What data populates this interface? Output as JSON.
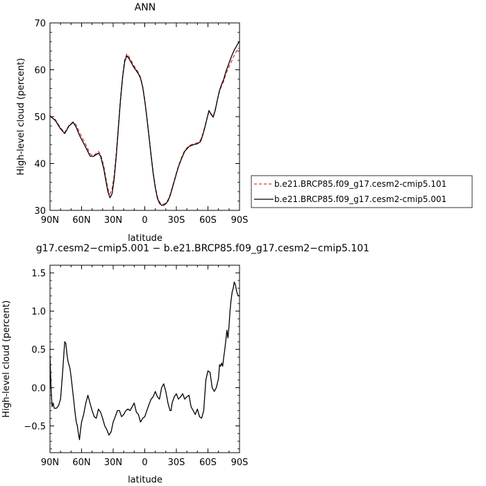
{
  "chart_data": [
    {
      "type": "line",
      "title": "ANN",
      "xlabel": "latitude",
      "ylabel": "High-level cloud (percent)",
      "xlim": [
        90,
        -90
      ],
      "ylim": [
        30,
        70
      ],
      "x_ticks": [
        90,
        60,
        30,
        0,
        -30,
        -60,
        -90
      ],
      "x_tick_labels": [
        "90N",
        "60N",
        "30N",
        "0",
        "30S",
        "60S",
        "90S"
      ],
      "y_ticks": [
        30,
        40,
        50,
        60,
        70
      ],
      "y_tick_labels": [
        "30",
        "40",
        "50",
        "60",
        "70"
      ],
      "legend_position": "right",
      "series": [
        {
          "name": "b.e21.BRCP85.f09_g17.cesm2-cmip5.101",
          "color": "#e03030",
          "dash": "dashed",
          "x": [
            90,
            85,
            80,
            76,
            72,
            68,
            65,
            62,
            58,
            55,
            52,
            49,
            46,
            44,
            42,
            39,
            37,
            35,
            33,
            31,
            29,
            27,
            25,
            23,
            21,
            19,
            17,
            15,
            12,
            10,
            8,
            6,
            4,
            2,
            0,
            -2,
            -4,
            -6,
            -8,
            -10,
            -12,
            -14,
            -16,
            -18,
            -20,
            -22,
            -24,
            -26,
            -28,
            -30,
            -32,
            -35,
            -38,
            -42,
            -46,
            -50,
            -53,
            -55,
            -57,
            -59,
            -61,
            -63,
            -65,
            -67,
            -69,
            -71,
            -73,
            -75,
            -77,
            -79,
            -81,
            -83,
            -85,
            -87,
            -89,
            -90
          ],
          "values": [
            50.2,
            49.4,
            47.6,
            46.6,
            48.1,
            48.9,
            48.2,
            46.6,
            44.9,
            43.6,
            42.1,
            41.6,
            42.2,
            42.6,
            42.0,
            39.6,
            37.0,
            34.6,
            33.5,
            34.6,
            37.6,
            42.5,
            48.3,
            54.0,
            58.9,
            62.3,
            63.4,
            62.8,
            61.6,
            60.8,
            60.1,
            59.4,
            58.4,
            56.5,
            53.6,
            50.0,
            46.0,
            42.0,
            38.2,
            35.1,
            32.9,
            31.8,
            31.3,
            31.3,
            31.6,
            32.2,
            33.3,
            34.8,
            36.4,
            38.0,
            39.5,
            41.3,
            42.8,
            43.8,
            44.2,
            44.4,
            45.0,
            46.2,
            47.8,
            49.6,
            51.1,
            50.6,
            50.0,
            51.6,
            53.6,
            55.4,
            56.6,
            57.6,
            59.1,
            60.1,
            61.1,
            62.1,
            63.1,
            63.9,
            64.6,
            64.6
          ]
        },
        {
          "name": "b.e21.BRCP85.f09_g17.cesm2-cmip5.001",
          "color": "#000000",
          "dash": "solid",
          "x": [
            90,
            85,
            80,
            76,
            72,
            68,
            65,
            62,
            58,
            55,
            52,
            49,
            46,
            44,
            42,
            39,
            37,
            35,
            33,
            31,
            29,
            27,
            25,
            23,
            21,
            19,
            17,
            15,
            12,
            10,
            8,
            6,
            4,
            2,
            0,
            -2,
            -4,
            -6,
            -8,
            -10,
            -12,
            -14,
            -16,
            -18,
            -20,
            -22,
            -24,
            -26,
            -28,
            -30,
            -32,
            -35,
            -38,
            -42,
            -46,
            -50,
            -53,
            -55,
            -57,
            -59,
            -61,
            -63,
            -65,
            -67,
            -69,
            -71,
            -73,
            -75,
            -77,
            -79,
            -81,
            -83,
            -85,
            -87,
            -89,
            -90
          ],
          "values": [
            50.1,
            49.2,
            47.4,
            46.4,
            48.0,
            48.8,
            47.7,
            46.0,
            44.3,
            43.0,
            41.6,
            41.5,
            41.9,
            42.2,
            41.6,
            39.0,
            36.4,
            34.0,
            32.7,
            33.6,
            36.8,
            41.8,
            47.8,
            53.6,
            58.5,
            61.8,
            63.0,
            62.4,
            61.2,
            60.4,
            59.8,
            59.1,
            58.2,
            56.3,
            53.4,
            49.8,
            45.7,
            41.7,
            37.9,
            34.8,
            32.6,
            31.5,
            31.1,
            31.1,
            31.4,
            32.0,
            33.1,
            34.6,
            36.2,
            37.8,
            39.3,
            41.1,
            42.6,
            43.6,
            44.0,
            44.2,
            44.7,
            46.0,
            47.6,
            49.5,
            51.3,
            50.5,
            49.9,
            51.4,
            53.6,
            55.6,
            56.9,
            58.0,
            59.6,
            60.8,
            62.0,
            63.2,
            64.2,
            65.0,
            65.8,
            66.0
          ]
        }
      ]
    },
    {
      "type": "line",
      "title": "g17.cesm2−cmip5.001 − b.e21.BRCP85.f09_g17.cesm2−cmip5.101",
      "xlabel": "latitude",
      "ylabel": "High-level cloud (percent)",
      "xlim": [
        90,
        -90
      ],
      "ylim": [
        -0.85,
        1.6
      ],
      "x_ticks": [
        90,
        60,
        30,
        0,
        -30,
        -60,
        -90
      ],
      "x_tick_labels": [
        "90N",
        "60N",
        "30N",
        "0",
        "30S",
        "60S",
        "90S"
      ],
      "y_ticks": [
        -0.5,
        0.0,
        0.5,
        1.0,
        1.5
      ],
      "y_tick_labels": [
        "−0.5",
        "0.0",
        "0.5",
        "1.0",
        "1.5"
      ],
      "series": [
        {
          "color": "#000000",
          "dash": "solid",
          "x": [
            90,
            89,
            88,
            87,
            86,
            84,
            82,
            80,
            78,
            76,
            75,
            74,
            73,
            72,
            71,
            70,
            68,
            66,
            65,
            64,
            63,
            62,
            61,
            60,
            58,
            56,
            54,
            52,
            50,
            48,
            46,
            44,
            42,
            40,
            38,
            36,
            34,
            32,
            30,
            28,
            26,
            24,
            22,
            20,
            18,
            16,
            14,
            12,
            10,
            8,
            6,
            4,
            2,
            0,
            -2,
            -4,
            -6,
            -8,
            -10,
            -12,
            -14,
            -16,
            -18,
            -20,
            -22,
            -24,
            -25,
            -26,
            -28,
            -30,
            -32,
            -34,
            -36,
            -38,
            -40,
            -42,
            -44,
            -46,
            -48,
            -50,
            -52,
            -54,
            -56,
            -58,
            -60,
            -62,
            -64,
            -66,
            -68,
            -70,
            -71,
            -72,
            -73,
            -74,
            -75,
            -76,
            -77,
            -78,
            -79,
            -80,
            -81,
            -82,
            -83,
            -84,
            -85,
            -86,
            -87,
            -88,
            -89,
            -90
          ],
          "values": [
            0.42,
            0.0,
            -0.25,
            -0.2,
            -0.27,
            -0.27,
            -0.24,
            -0.15,
            0.2,
            0.6,
            0.58,
            0.45,
            0.35,
            0.3,
            0.25,
            0.15,
            -0.1,
            -0.35,
            -0.45,
            -0.5,
            -0.6,
            -0.68,
            -0.55,
            -0.45,
            -0.35,
            -0.2,
            -0.1,
            -0.2,
            -0.3,
            -0.38,
            -0.4,
            -0.28,
            -0.32,
            -0.4,
            -0.5,
            -0.55,
            -0.62,
            -0.58,
            -0.45,
            -0.38,
            -0.3,
            -0.3,
            -0.38,
            -0.35,
            -0.3,
            -0.28,
            -0.3,
            -0.25,
            -0.2,
            -0.32,
            -0.35,
            -0.45,
            -0.4,
            -0.38,
            -0.3,
            -0.22,
            -0.15,
            -0.12,
            -0.05,
            -0.12,
            -0.15,
            0.0,
            0.05,
            -0.05,
            -0.2,
            -0.3,
            -0.3,
            -0.2,
            -0.12,
            -0.08,
            -0.15,
            -0.12,
            -0.08,
            -0.15,
            -0.12,
            -0.1,
            -0.25,
            -0.3,
            -0.35,
            -0.28,
            -0.38,
            -0.4,
            -0.3,
            0.1,
            0.22,
            0.2,
            0.0,
            -0.05,
            0.0,
            0.12,
            0.3,
            0.28,
            0.32,
            0.28,
            0.4,
            0.5,
            0.62,
            0.75,
            0.65,
            0.8,
            1.0,
            1.15,
            1.25,
            1.3,
            1.38,
            1.35,
            1.28,
            1.22,
            1.2,
            1.2
          ]
        }
      ]
    }
  ],
  "legend": {
    "items": [
      {
        "label": "b.e21.BRCP85.f09_g17.cesm2-cmip5.101"
      },
      {
        "label": "b.e21.BRCP85.f09_g17.cesm2-cmip5.001"
      }
    ]
  }
}
